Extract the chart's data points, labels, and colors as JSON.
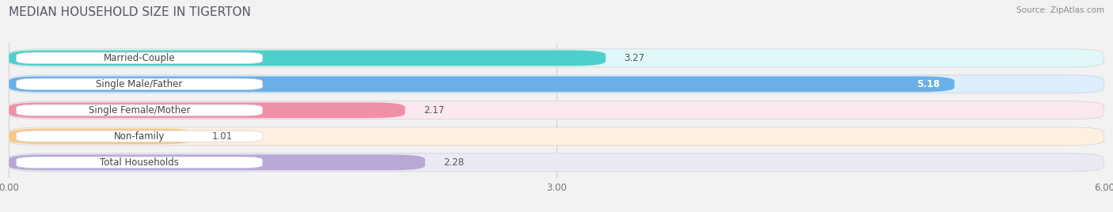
{
  "title": "MEDIAN HOUSEHOLD SIZE IN TIGERTON",
  "source": "Source: ZipAtlas.com",
  "categories": [
    "Married-Couple",
    "Single Male/Father",
    "Single Female/Mother",
    "Non-family",
    "Total Households"
  ],
  "values": [
    3.27,
    5.18,
    2.17,
    1.01,
    2.28
  ],
  "bar_colors": [
    "#4ecfcc",
    "#6aafe8",
    "#f090a8",
    "#f8c88a",
    "#b8a8d8"
  ],
  "bar_bg_colors": [
    "#e0f8f8",
    "#ddeeff",
    "#fce8f0",
    "#fef0e0",
    "#ece8f4"
  ],
  "xlim": [
    0,
    6.0
  ],
  "xticks": [
    0.0,
    3.0,
    6.0
  ],
  "xtick_labels": [
    "0.00",
    "3.00",
    "6.00"
  ],
  "title_fontsize": 11,
  "label_fontsize": 8.5,
  "value_fontsize": 8.5,
  "background_color": "#f2f2f2"
}
